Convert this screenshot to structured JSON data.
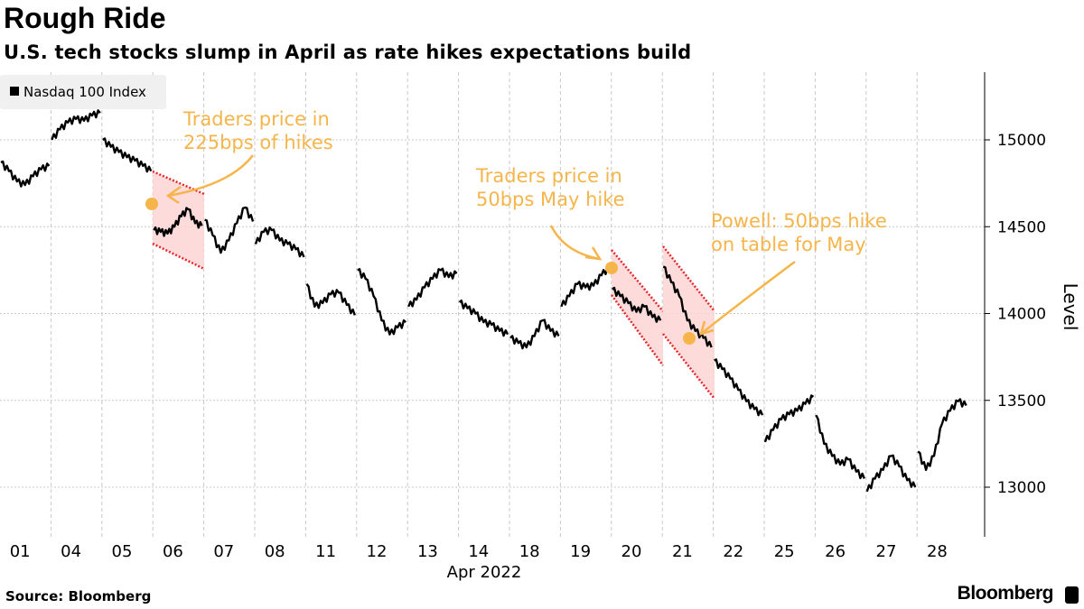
{
  "header": {
    "title": "Rough Ride",
    "subtitle": "U.S. tech stocks slump in April as rate hikes expectations build"
  },
  "footer": {
    "source": "Source: Bloomberg",
    "brand": "Bloomberg"
  },
  "chart_data": {
    "type": "line",
    "title": "Rough Ride",
    "subtitle": "U.S. tech stocks slump in April as rate hikes expectations build",
    "legend": {
      "entries": [
        "Nasdaq 100 Index"
      ],
      "placement": "top-left"
    },
    "xlabel": "Apr 2022",
    "ylabel": "Level",
    "categories": [
      "01",
      "04",
      "05",
      "06",
      "07",
      "08",
      "11",
      "12",
      "13",
      "14",
      "18",
      "19",
      "20",
      "21",
      "22",
      "25",
      "26",
      "27",
      "28"
    ],
    "ylim": [
      12750,
      15350
    ],
    "yticks": [
      13000,
      13500,
      14000,
      14500,
      15000
    ],
    "y_axis_side": "right",
    "grid": true,
    "colors": {
      "line": "#000000",
      "annotation": "#f5b54a",
      "shade": "#fdd5d5",
      "shade_border": "#e8262b"
    },
    "series": [
      {
        "name": "Nasdaq 100 Index",
        "intraday_values": [
          [
            14870,
            14820,
            14760,
            14740,
            14790,
            14830,
            14850
          ],
          [
            15000,
            15060,
            15100,
            15120,
            15110,
            15140,
            15155
          ],
          [
            15000,
            14960,
            14930,
            14900,
            14880,
            14850,
            14820
          ],
          [
            14480,
            14470,
            14460,
            14500,
            14560,
            14600,
            14520,
            14505
          ],
          [
            14540,
            14450,
            14350,
            14420,
            14520,
            14610,
            14530
          ],
          [
            14400,
            14470,
            14480,
            14420,
            14400,
            14370,
            14325
          ],
          [
            14170,
            14040,
            14060,
            14110,
            14120,
            14050,
            13990
          ],
          [
            14250,
            14200,
            14100,
            13960,
            13880,
            13920,
            13950
          ],
          [
            14040,
            14080,
            14150,
            14200,
            14250,
            14210,
            14230
          ],
          [
            14065,
            14030,
            14000,
            13950,
            13935,
            13900,
            13880
          ],
          [
            13860,
            13830,
            13805,
            13870,
            13960,
            13900,
            13870
          ],
          [
            14040,
            14100,
            14170,
            14150,
            14160,
            14220,
            14270
          ],
          [
            14140,
            14100,
            14060,
            14010,
            14040,
            13980,
            13960
          ],
          [
            14270,
            14180,
            14100,
            13960,
            13900,
            13860,
            13805
          ],
          [
            13730,
            13680,
            13625,
            13560,
            13495,
            13450,
            13415
          ],
          [
            13260,
            13330,
            13390,
            13420,
            13440,
            13480,
            13520
          ],
          [
            13415,
            13250,
            13180,
            13130,
            13160,
            13090,
            13050
          ],
          [
            12975,
            13050,
            13100,
            13180,
            13120,
            13040,
            13000
          ],
          [
            13205,
            13100,
            13180,
            13365,
            13440,
            13495,
            13470
          ]
        ]
      }
    ],
    "annotations": [
      {
        "text": [
          "Traders price in",
          "225bps of hikes"
        ],
        "date": "06"
      },
      {
        "text": [
          "Traders price in",
          "50bps May hike"
        ],
        "date": "20"
      },
      {
        "text": [
          "Powell: 50bps hike",
          "on table for May"
        ],
        "date": "21"
      }
    ]
  }
}
